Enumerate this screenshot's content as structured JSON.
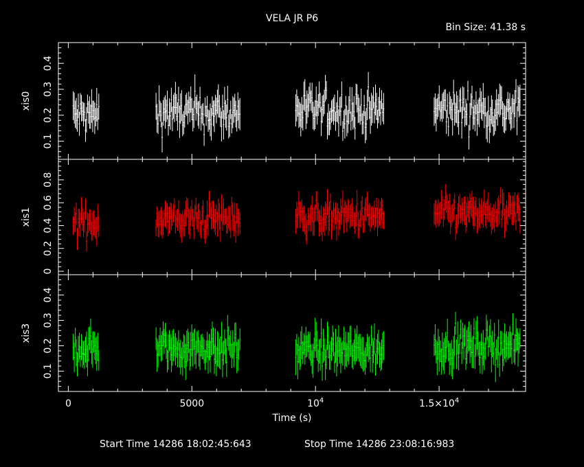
{
  "title": "VELA JR P6",
  "bin_size": "Bin Size: 41.38 s",
  "footer": {
    "start": "Start Time 14286 18:02:45:643",
    "stop": "Stop Time 14286 23:08:16:983"
  },
  "colors": {
    "xis0": "#ffffff",
    "xis1": "#ff0000",
    "xis3": "#00ff00",
    "axes": "#ffffff"
  },
  "chart_data": {
    "type": "scatter",
    "xlabel": "Time (s)",
    "xlim": [
      -400,
      18500
    ],
    "x_ticks": [
      {
        "value": 0,
        "label": "0"
      },
      {
        "value": 5000,
        "label": "5000"
      },
      {
        "value": 10000,
        "label": "10",
        "sup": "4"
      },
      {
        "value": 15000,
        "label": "1.5×10",
        "sup": "4"
      }
    ],
    "segments": [
      [
        200,
        1250
      ],
      [
        3550,
        6950
      ],
      [
        9200,
        12800
      ],
      [
        14800,
        18300
      ]
    ],
    "bin_size_s": 41.38,
    "panels": [
      {
        "ylabel": "xis0",
        "color": "#ffffff",
        "ylim": [
          0.03,
          0.48
        ],
        "y_ticks": [
          {
            "value": 0.1,
            "label": "0.1"
          },
          {
            "value": 0.2,
            "label": "0.2"
          },
          {
            "value": 0.3,
            "label": "0.3"
          },
          {
            "value": 0.4,
            "label": "0.4"
          }
        ],
        "mean": [
          0.2,
          0.21,
          0.22,
          0.22
        ],
        "spread": 0.06,
        "err": 0.05
      },
      {
        "ylabel": "xis1",
        "color": "#ff0000",
        "ylim": [
          -0.03,
          0.98
        ],
        "y_ticks": [
          {
            "value": 0,
            "label": "0"
          },
          {
            "value": 0.2,
            "label": "0.2"
          },
          {
            "value": 0.4,
            "label": "0.4"
          },
          {
            "value": 0.6,
            "label": "0.6"
          },
          {
            "value": 0.8,
            "label": "0.8"
          }
        ],
        "mean": [
          0.42,
          0.46,
          0.48,
          0.5
        ],
        "spread": 0.1,
        "err": 0.1
      },
      {
        "ylabel": "xis3",
        "color": "#00ff00",
        "ylim": [
          0.02,
          0.48
        ],
        "y_ticks": [
          {
            "value": 0.1,
            "label": "0.1"
          },
          {
            "value": 0.2,
            "label": "0.2"
          },
          {
            "value": 0.3,
            "label": "0.3"
          },
          {
            "value": 0.4,
            "label": "0.4"
          }
        ],
        "mean": [
          0.19,
          0.19,
          0.18,
          0.2
        ],
        "spread": 0.05,
        "err": 0.055
      }
    ]
  }
}
